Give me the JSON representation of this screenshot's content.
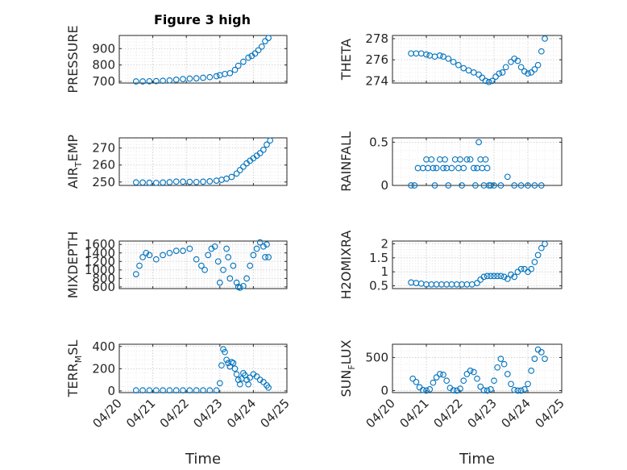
{
  "figure_title": "Figure 3 high",
  "colors": {
    "marker": "#0072BD",
    "axis": "#262626",
    "grid": "#c8c8c8"
  },
  "chart_data": [
    {
      "type": "scatter",
      "ylabel": "PRESSURE",
      "title": "Figure 3 high",
      "xlim": [
        "04/20",
        "04/25"
      ],
      "ylim": [
        690,
        980
      ],
      "yticks": [
        700,
        800,
        900
      ],
      "ytick_labels": [
        "700",
        "800",
        "900"
      ],
      "x_values": [
        0.5,
        0.7,
        0.9,
        1.1,
        1.3,
        1.5,
        1.7,
        1.9,
        2.1,
        2.3,
        2.5,
        2.7,
        2.9,
        3.0,
        3.15,
        3.3,
        3.45,
        3.55,
        3.7,
        3.85,
        3.95,
        4.05,
        4.15,
        4.25,
        4.35,
        4.45
      ],
      "y_values": [
        700,
        700,
        701,
        702,
        704,
        706,
        710,
        714,
        717,
        719,
        722,
        726,
        732,
        738,
        745,
        750,
        770,
        795,
        820,
        845,
        855,
        870,
        890,
        912,
        945,
        965
      ]
    },
    {
      "type": "scatter",
      "ylabel": "THETA",
      "xlim": [
        "04/20",
        "04/25"
      ],
      "ylim": [
        273.8,
        278.3
      ],
      "yticks": [
        274,
        276,
        278
      ],
      "ytick_labels": [
        "274",
        "276",
        "278"
      ],
      "x_values": [
        0.55,
        0.7,
        0.85,
        1.0,
        1.1,
        1.25,
        1.4,
        1.5,
        1.65,
        1.8,
        1.95,
        2.1,
        2.25,
        2.4,
        2.55,
        2.65,
        2.75,
        2.85,
        2.95,
        3.05,
        3.15,
        3.25,
        3.35,
        3.5,
        3.6,
        3.7,
        3.8,
        3.9,
        4.0,
        4.1,
        4.2,
        4.3,
        4.4,
        4.5
      ],
      "y_values": [
        276.6,
        276.6,
        276.6,
        276.5,
        276.4,
        276.3,
        276.4,
        276.3,
        276.1,
        275.8,
        275.5,
        275.2,
        275.0,
        274.8,
        274.6,
        274.3,
        274.0,
        273.9,
        274.0,
        274.4,
        274.7,
        274.8,
        275.3,
        275.8,
        276.1,
        275.9,
        275.3,
        274.9,
        274.7,
        274.8,
        275.1,
        275.5,
        276.8,
        278.0
      ]
    },
    {
      "type": "scatter",
      "ylabel": "AIR_TEMP",
      "xlim": [
        "04/20",
        "04/25"
      ],
      "ylim": [
        248,
        276
      ],
      "yticks": [
        250,
        260,
        270
      ],
      "ytick_labels": [
        "250",
        "260",
        "270"
      ],
      "x_values": [
        0.5,
        0.7,
        0.9,
        1.1,
        1.3,
        1.5,
        1.7,
        1.9,
        2.1,
        2.3,
        2.5,
        2.7,
        2.9,
        3.05,
        3.2,
        3.35,
        3.5,
        3.6,
        3.7,
        3.8,
        3.9,
        4.0,
        4.1,
        4.2,
        4.3,
        4.4,
        4.5
      ],
      "y_values": [
        249.8,
        249.7,
        249.6,
        249.5,
        249.7,
        249.9,
        250.3,
        250.2,
        250.1,
        250.0,
        250.2,
        250.4,
        250.8,
        251.3,
        252.0,
        253.0,
        255.0,
        257.0,
        259.0,
        261.0,
        262.5,
        264.0,
        265.5,
        267.0,
        269.0,
        272.0,
        274.5
      ]
    },
    {
      "type": "scatter",
      "ylabel": "RAINFALL",
      "xlim": [
        "04/20",
        "04/25"
      ],
      "ylim": [
        0,
        0.55
      ],
      "yticks": [
        0,
        0.5
      ],
      "ytick_labels": [
        "0",
        "0.5"
      ],
      "x_values": [
        0.75,
        0.9,
        1.0,
        1.05,
        1.15,
        1.2,
        1.3,
        1.4,
        1.5,
        1.55,
        1.6,
        1.75,
        1.85,
        1.95,
        2.0,
        2.1,
        2.2,
        2.3,
        2.4,
        2.5,
        2.55,
        2.6,
        2.65,
        2.75,
        2.8,
        2.85,
        3.0,
        3.2,
        3.4,
        3.6,
        3.8,
        4.0,
        4.2,
        4.4,
        0.55,
        0.65,
        1.25,
        1.65,
        2.05,
        2.45,
        2.7,
        2.9
      ],
      "y_values": [
        0.2,
        0.2,
        0.3,
        0.2,
        0.3,
        0.2,
        0.2,
        0.3,
        0.2,
        0.3,
        0.2,
        0.2,
        0.3,
        0.2,
        0.3,
        0.2,
        0.3,
        0.3,
        0.2,
        0.2,
        0.5,
        0.3,
        0.2,
        0.3,
        0.2,
        0.0,
        0.0,
        0.0,
        0.1,
        0.0,
        0.0,
        0.0,
        0.0,
        0.0,
        0.0,
        0.0,
        0.0,
        0.0,
        0.0,
        0.0,
        0.0,
        0.0
      ]
    },
    {
      "type": "scatter",
      "ylabel": "MIXDEPTH",
      "xlim": [
        "04/20",
        "04/25"
      ],
      "ylim": [
        560,
        1680
      ],
      "yticks": [
        600,
        800,
        1000,
        1200,
        1400,
        1600
      ],
      "ytick_labels": [
        "600",
        "800",
        "1000",
        "1200",
        "1400",
        "1600"
      ],
      "x_values": [
        0.5,
        0.6,
        0.7,
        0.8,
        0.9,
        1.1,
        1.3,
        1.5,
        1.7,
        1.9,
        2.1,
        2.3,
        2.45,
        2.55,
        2.65,
        2.75,
        2.85,
        2.95,
        3.0,
        3.1,
        3.2,
        3.25,
        3.3,
        3.4,
        3.5,
        3.55,
        3.6,
        3.7,
        3.8,
        3.9,
        4.0,
        4.1,
        4.2,
        4.3,
        4.35,
        4.4,
        4.45
      ],
      "y_values": [
        900,
        1100,
        1300,
        1400,
        1350,
        1250,
        1350,
        1400,
        1450,
        1450,
        1500,
        1250,
        1100,
        1000,
        1350,
        1500,
        1550,
        1200,
        700,
        1000,
        1500,
        1300,
        800,
        1100,
        700,
        600,
        580,
        620,
        800,
        1100,
        1350,
        1500,
        1650,
        1550,
        1300,
        1600,
        1300
      ]
    },
    {
      "type": "scatter",
      "ylabel": "H2OMIXRA",
      "xlim": [
        "04/20",
        "04/25"
      ],
      "ylim": [
        0.4,
        2.1
      ],
      "yticks": [
        0.5,
        1,
        1.5,
        2
      ],
      "ytick_labels": [
        "0.5",
        "1",
        "1.5",
        "2"
      ],
      "x_values": [
        0.55,
        0.7,
        0.85,
        1.0,
        1.15,
        1.3,
        1.45,
        1.6,
        1.75,
        1.9,
        2.05,
        2.2,
        2.35,
        2.5,
        2.6,
        2.7,
        2.8,
        2.9,
        3.0,
        3.1,
        3.2,
        3.3,
        3.4,
        3.5,
        3.6,
        3.7,
        3.8,
        3.9,
        4.0,
        4.1,
        4.2,
        4.3,
        4.4,
        4.5
      ],
      "y_values": [
        0.62,
        0.6,
        0.58,
        0.55,
        0.55,
        0.55,
        0.55,
        0.55,
        0.55,
        0.55,
        0.55,
        0.55,
        0.55,
        0.6,
        0.72,
        0.82,
        0.85,
        0.85,
        0.85,
        0.85,
        0.85,
        0.82,
        0.75,
        0.9,
        0.82,
        1.0,
        1.1,
        1.1,
        1.0,
        1.1,
        1.35,
        1.6,
        1.85,
        2.0
      ]
    },
    {
      "type": "scatter",
      "ylabel": "TERR_MSL",
      "xlim": [
        "04/20",
        "04/25"
      ],
      "ylim": [
        -15,
        420
      ],
      "yticks": [
        0,
        200,
        400
      ],
      "ytick_labels": [
        "0",
        "200",
        "400"
      ],
      "x_values": [
        0.5,
        0.7,
        0.9,
        1.1,
        1.3,
        1.5,
        1.7,
        1.9,
        2.1,
        2.3,
        2.5,
        2.7,
        2.9,
        3.0,
        3.05,
        3.1,
        3.15,
        3.2,
        3.25,
        3.3,
        3.35,
        3.4,
        3.45,
        3.5,
        3.55,
        3.6,
        3.65,
        3.7,
        3.75,
        3.8,
        3.85,
        3.9,
        4.0,
        4.1,
        4.2,
        4.3,
        4.4,
        4.45
      ],
      "y_values": [
        5,
        5,
        5,
        5,
        5,
        5,
        5,
        5,
        5,
        5,
        5,
        5,
        5,
        70,
        230,
        375,
        350,
        280,
        250,
        220,
        260,
        250,
        200,
        150,
        100,
        60,
        110,
        160,
        140,
        100,
        60,
        120,
        150,
        130,
        100,
        80,
        50,
        30
      ]
    },
    {
      "type": "scatter",
      "ylabel": "SUN_FLUX",
      "xlim": [
        "04/20",
        "04/25"
      ],
      "ylim": [
        -30,
        700
      ],
      "yticks": [
        0,
        500
      ],
      "ytick_labels": [
        "0",
        "500"
      ],
      "x_values": [
        0.6,
        0.7,
        0.8,
        0.9,
        1.0,
        1.1,
        1.2,
        1.3,
        1.4,
        1.5,
        1.6,
        1.7,
        1.8,
        1.9,
        2.0,
        2.1,
        2.2,
        2.3,
        2.4,
        2.5,
        2.6,
        2.7,
        2.8,
        2.9,
        3.0,
        3.1,
        3.2,
        3.3,
        3.4,
        3.5,
        3.6,
        3.7,
        3.8,
        3.9,
        4.0,
        4.1,
        4.2,
        4.3,
        4.4,
        4.5
      ],
      "y_values": [
        180,
        130,
        50,
        10,
        0,
        20,
        120,
        200,
        250,
        240,
        150,
        40,
        5,
        0,
        30,
        150,
        250,
        300,
        280,
        180,
        60,
        5,
        0,
        20,
        150,
        350,
        480,
        400,
        250,
        100,
        10,
        0,
        0,
        20,
        100,
        300,
        480,
        620,
        580,
        480
      ]
    }
  ],
  "ylabel_parts": [
    {
      "main": "PRESSURE",
      "sub": "",
      "tail": ""
    },
    {
      "main": "THETA",
      "sub": "",
      "tail": ""
    },
    {
      "main": "AIR",
      "sub": "T",
      "tail": "EMP"
    },
    {
      "main": "RAINFALL",
      "sub": "",
      "tail": ""
    },
    {
      "main": "MIXDEPTH",
      "sub": "",
      "tail": ""
    },
    {
      "main": "H2OMIXRA",
      "sub": "",
      "tail": ""
    },
    {
      "main": "TERR",
      "sub": "M",
      "tail": "SL"
    },
    {
      "main": "SUN",
      "sub": "F",
      "tail": "LUX"
    }
  ],
  "x_axis": {
    "tick_labels": [
      "04/20",
      "04/21",
      "04/22",
      "04/23",
      "04/24",
      "04/25"
    ],
    "xlabel": "Time"
  }
}
